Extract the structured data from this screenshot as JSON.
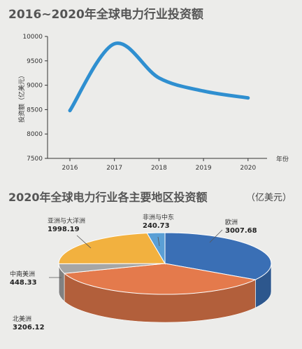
{
  "chart_data": [
    {
      "type": "line",
      "title": "2016~2020年全球电力行业投资额",
      "xlabel": "年份",
      "ylabel": "投资额（亿美元）",
      "x": [
        "2016",
        "2017",
        "2018",
        "2019",
        "2020"
      ],
      "yticks": [
        7500,
        8000,
        8500,
        9000,
        9500,
        10000
      ],
      "ylim": [
        7500,
        10000
      ],
      "series": [
        {
          "values": [
            8480,
            9850,
            9150,
            8880,
            8740
          ],
          "color": "#2f8fd0"
        }
      ],
      "grid": false
    },
    {
      "type": "pie",
      "title": "2020年全球电力行业各主要地区投资额",
      "unit": "（亿美元）",
      "slices": [
        {
          "label": "欧洲",
          "value": 3007.68,
          "color": "#3a6fb5"
        },
        {
          "label": "北美洲",
          "value": 3206.12,
          "color": "#e47a4c"
        },
        {
          "label": "中南美洲",
          "value": 448.33,
          "color": "#a6a6a6"
        },
        {
          "label": "亚洲与大洋洲",
          "value": 1998.19,
          "color": "#f2b13f"
        },
        {
          "label": "非洲与中东",
          "value": 240.73,
          "color": "#5a9fd5"
        }
      ]
    }
  ]
}
